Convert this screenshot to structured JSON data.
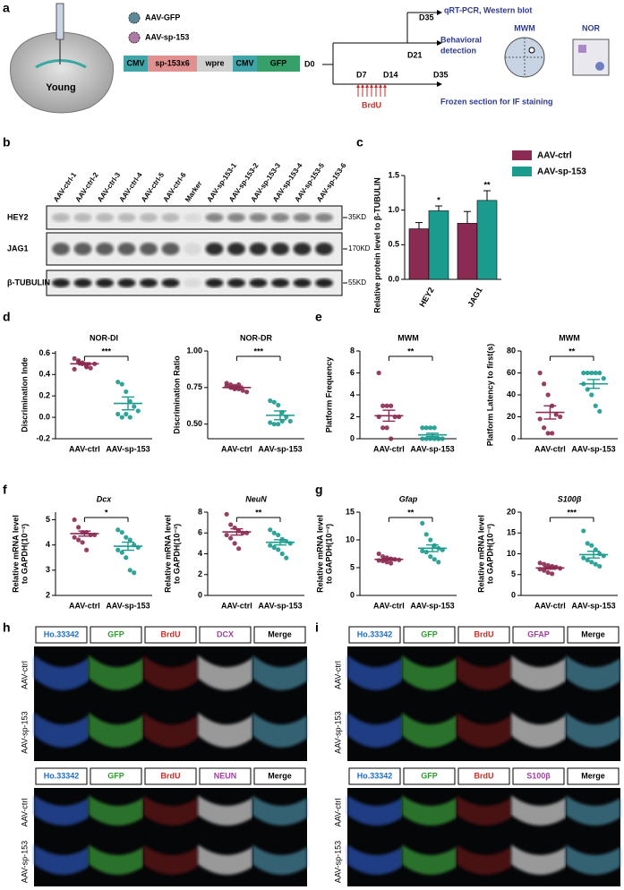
{
  "panel_labels": [
    "a",
    "b",
    "c",
    "d",
    "e",
    "f",
    "g",
    "h",
    "i"
  ],
  "panel_a": {
    "vectors": [
      "AAV-GFP",
      "AAV-sp-153"
    ],
    "brain_label": "Young",
    "construct": [
      "CMV",
      "sp-153x6",
      "wpre",
      "CMV",
      "GFP"
    ],
    "timeline": {
      "start": "D0",
      "d7": "D7",
      "d14": "D14",
      "d21": "D21",
      "d35_top": "D35",
      "d35_bottom": "D35",
      "brdu": "BrdU"
    },
    "outcomes": {
      "molecular": "qRT-PCR, Western blot",
      "behavior": [
        "Behavioral",
        "detection"
      ],
      "staining": "Frozen section for IF staining"
    },
    "tests": [
      "MWM",
      "NOR"
    ]
  },
  "panel_b": {
    "lanes": [
      "AAV-ctrl-1",
      "AAV-ctrl-2",
      "AAV-ctrl-3",
      "AAV-ctrl-4",
      "AAV-ctrl-5",
      "AAV-ctrl-6",
      "Marker",
      "AAV-sp-153-1",
      "AAV-sp-153-2",
      "AAV-sp-153-3",
      "AAV-sp-153-4",
      "AAV-sp-153-5",
      "AAV-sp-153-6"
    ],
    "rows": [
      "HEY2",
      "JAG1",
      "β-TUBULIN"
    ],
    "sizes": [
      "35KD",
      "170KD",
      "55KD"
    ]
  },
  "chart_data": [
    {
      "type": "bar",
      "y_label": "Relative protein level to β-TUBULIN",
      "categories": [
        "HEY2",
        "JAG1"
      ],
      "series": [
        {
          "name": "AAV-ctrl",
          "color": "#8b2a52",
          "values": [
            0.73,
            0.81
          ],
          "errors": [
            0.09,
            0.17
          ]
        },
        {
          "name": "AAV-sp-153",
          "color": "#1b9a8e",
          "values": [
            0.99,
            1.14
          ],
          "errors": [
            0.07,
            0.14
          ],
          "stars": [
            "*",
            "**"
          ]
        }
      ],
      "ylim": [
        0,
        1.5
      ],
      "yticks": [
        {
          "value": 0,
          "label": "0.0"
        },
        0.5,
        {
          "value": 1,
          "label": "1.0"
        },
        1.5
      ]
    },
    {
      "type": "dot",
      "title": "NOR-DI",
      "italic": false,
      "y_label": [
        "Discrimination Inde"
      ],
      "categories": [
        "AAV-ctrl",
        "AAV-sp-153"
      ],
      "colors": [
        "#8b2a52",
        "#1b9a8e"
      ],
      "points": [
        [
          0.55,
          0.52,
          0.5,
          0.48,
          0.46,
          0.5,
          0.45,
          0.53,
          0.51,
          0.47
        ],
        [
          0.33,
          0.31,
          0.24,
          0.15,
          0.1,
          0.06,
          0.03,
          0,
          0.03,
          0
        ]
      ],
      "means": [
        0.5,
        0.13
      ],
      "sem": [
        0.01,
        0.06
      ],
      "significance": "***",
      "ylim": [
        -0.2,
        0.62
      ],
      "yticks": [
        -0.2,
        {
          "value": 0,
          "label": "0.0"
        },
        0.2,
        0.4,
        0.6
      ]
    },
    {
      "type": "dot",
      "title": "NOR-DR",
      "italic": false,
      "y_label": [
        "Discrimination Ratio"
      ],
      "categories": [
        "AAV-ctrl",
        "AAV-sp-153"
      ],
      "colors": [
        "#8b2a52",
        "#1b9a8e"
      ],
      "points": [
        [
          0.78,
          0.77,
          0.76,
          0.74,
          0.73,
          0.72,
          0.76,
          0.75,
          0.74,
          0.77
        ],
        [
          0.66,
          0.65,
          0.63,
          0.58,
          0.55,
          0.52,
          0.51,
          0.5,
          0.5,
          0.52
        ]
      ],
      "means": [
        0.75,
        0.56
      ],
      "sem": [
        0.01,
        0.03
      ],
      "significance": "***",
      "ylim": [
        0.4,
        1.0
      ],
      "yticks": [
        {
          "value": 0.5,
          "label": "0.50"
        },
        {
          "value": 0.75,
          "label": "0.75"
        },
        {
          "value": 1,
          "label": "1.00"
        }
      ]
    },
    {
      "type": "dot",
      "title": "MWM",
      "italic": false,
      "y_label": [
        "Platform  Frequency"
      ],
      "categories": [
        "AAV-ctrl",
        "AAV-sp-153"
      ],
      "colors": [
        "#8b2a52",
        "#1b9a8e"
      ],
      "points": [
        [
          6,
          3,
          3,
          3,
          2,
          2,
          2,
          1,
          1,
          0
        ],
        [
          1,
          1,
          1,
          1,
          0,
          0,
          0,
          0,
          0,
          0,
          0
        ]
      ],
      "means": [
        2.1,
        0.35
      ],
      "sem": [
        0.5,
        0.15
      ],
      "significance": "**",
      "ylim": [
        0,
        8
      ],
      "yticks": [
        0,
        2,
        4,
        6,
        8
      ]
    },
    {
      "type": "dot",
      "title": "MWM",
      "italic": false,
      "y_label": [
        "Platform  Latency to first(s)"
      ],
      "categories": [
        "AAV-ctrl",
        "AAV-sp-153"
      ],
      "colors": [
        "#8b2a52",
        "#1b9a8e"
      ],
      "points": [
        [
          60,
          50,
          40,
          30,
          22,
          20,
          18,
          10,
          5,
          5
        ],
        [
          60,
          60,
          60,
          60,
          60,
          55,
          50,
          45,
          40,
          30,
          25
        ]
      ],
      "means": [
        24,
        50
      ],
      "sem": [
        6,
        4
      ],
      "significance": "**",
      "ylim": [
        0,
        80
      ],
      "yticks": [
        0,
        20,
        40,
        60,
        80
      ]
    },
    {
      "type": "dot",
      "title": "Dcx",
      "italic": true,
      "y_label": [
        "Relative mRNA level",
        "to GAPDH(10⁻²)"
      ],
      "categories": [
        "AAV-ctrl",
        "AAV-sp-153"
      ],
      "colors": [
        "#8b2a52",
        "#1b9a8e"
      ],
      "points": [
        [
          5,
          4.7,
          4.5,
          4.5,
          4.4,
          4.4,
          4.3,
          4.2,
          4.1,
          3.8
        ],
        [
          4.6,
          4.5,
          4.3,
          4.2,
          4,
          3.9,
          3.8,
          3.7,
          3.5,
          3,
          2.9
        ]
      ],
      "means": [
        4.45,
        3.95
      ],
      "sem": [
        0.1,
        0.16
      ],
      "significance": "*",
      "ylim": [
        2,
        5.3
      ],
      "yticks": [
        2,
        3,
        4,
        5
      ]
    },
    {
      "type": "dot",
      "title": "NeuN",
      "italic": true,
      "y_label": [
        "Relative mRNA level",
        "to GAPDH(10⁻²)"
      ],
      "categories": [
        "AAV-ctrl",
        "AAV-sp-153"
      ],
      "colors": [
        "#8b2a52",
        "#1b9a8e"
      ],
      "points": [
        [
          7.8,
          6.8,
          6.5,
          6.2,
          6,
          6,
          5.8,
          5.5,
          5,
          4.5
        ],
        [
          6.3,
          6,
          5.8,
          5.4,
          5.2,
          5,
          4.8,
          4.6,
          4.4,
          4,
          3.6
        ]
      ],
      "means": [
        6.1,
        5.1
      ],
      "sem": [
        0.3,
        0.25
      ],
      "significance": "**",
      "ylim": [
        0,
        8
      ],
      "yticks": [
        0,
        2,
        4,
        6,
        8
      ]
    },
    {
      "type": "dot",
      "title": "Gfap",
      "italic": true,
      "y_label": [
        "Relative mRNA level",
        "to GAPDH(10⁻²)"
      ],
      "categories": [
        "AAV-ctrl",
        "AAV-sp-153"
      ],
      "colors": [
        "#8b2a52",
        "#1b9a8e"
      ],
      "points": [
        [
          7.5,
          7,
          6.8,
          6.6,
          6.5,
          6.4,
          6.3,
          6.2,
          6,
          5.8
        ],
        [
          13,
          11,
          10,
          9,
          8.5,
          8.2,
          8,
          7.8,
          7,
          6.5,
          6
        ]
      ],
      "means": [
        6.5,
        8.5
      ],
      "sem": [
        0.2,
        0.6
      ],
      "significance": "**",
      "ylim": [
        0,
        15
      ],
      "yticks": [
        0,
        5,
        10,
        15
      ]
    },
    {
      "type": "dot",
      "title": "S100β",
      "italic": true,
      "y_label": [
        "Relative mRNA level",
        "to GAPDH(10⁻²)"
      ],
      "categories": [
        "AAV-ctrl",
        "AAV-sp-153"
      ],
      "colors": [
        "#8b2a52",
        "#1b9a8e"
      ],
      "points": [
        [
          7.8,
          7.5,
          7.2,
          7,
          6.8,
          6.5,
          6.3,
          6,
          5.5,
          5.2
        ],
        [
          15.5,
          12.5,
          12,
          11,
          10,
          9.5,
          9,
          8.5,
          8,
          7.5,
          7
        ]
      ],
      "means": [
        6.6,
        9.8
      ],
      "sem": [
        0.3,
        0.8
      ],
      "significance": "***",
      "ylim": [
        0,
        20
      ],
      "yticks": [
        0,
        5,
        10,
        15,
        20
      ]
    }
  ],
  "panel_h": {
    "blocks": [
      {
        "channels": [
          "Ho.33342",
          "GFP",
          "BrdU",
          "DCX",
          "Merge"
        ],
        "rows": [
          "AAV-ctrl",
          "AAV-sp-153"
        ]
      },
      {
        "channels": [
          "Ho.33342",
          "GFP",
          "BrdU",
          "NEUN",
          "Merge"
        ],
        "rows": [
          "AAV-ctrl",
          "AAV-sp-153"
        ]
      }
    ]
  },
  "panel_i": {
    "blocks": [
      {
        "channels": [
          "Ho.33342",
          "GFP",
          "BrdU",
          "GFAP",
          "Merge"
        ],
        "rows": [
          "AAV-ctrl",
          "AAV-sp-153"
        ]
      },
      {
        "channels": [
          "Ho.33342",
          "GFP",
          "BrdU",
          "S100β",
          "Merge"
        ],
        "rows": [
          "AAV-ctrl",
          "AAV-sp-153"
        ]
      }
    ]
  }
}
